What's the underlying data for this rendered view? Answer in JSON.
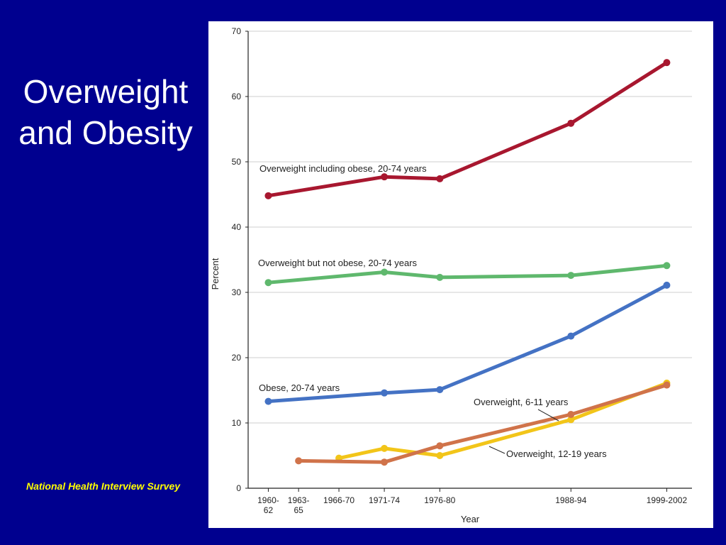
{
  "slide": {
    "title_line1": "Overweight",
    "title_line2": "and Obesity",
    "source": "National Health Interview Survey"
  },
  "chart_data": {
    "type": "line",
    "title": "",
    "xlabel": "Year",
    "ylabel": "Percent",
    "ylim": [
      0,
      70
    ],
    "yticks": [
      0,
      10,
      20,
      30,
      40,
      50,
      60,
      70
    ],
    "grid": true,
    "categories": [
      {
        "line1": "1960-",
        "line2": "62"
      },
      {
        "line1": "1963-",
        "line2": "65"
      },
      {
        "line1": "1966-70",
        "line2": ""
      },
      {
        "line1": "1971-74",
        "line2": ""
      },
      {
        "line1": "1976-80",
        "line2": ""
      },
      {
        "line1": "1988-94",
        "line2": ""
      },
      {
        "line1": "1999-2002",
        "line2": ""
      }
    ],
    "x_positions": [
      1961,
      1964,
      1968,
      1972.5,
      1978,
      1991,
      2000.5
    ],
    "series": [
      {
        "name": "Overweight including obese, 20-74 years",
        "color": "#a8172f",
        "points": [
          [
            1961,
            44.8
          ],
          [
            1972.5,
            47.7
          ],
          [
            1978,
            47.4
          ],
          [
            1991,
            55.9
          ],
          [
            2000.5,
            65.2
          ]
        ]
      },
      {
        "name": "Overweight but not obese, 20-74 years",
        "color": "#5fb86d",
        "points": [
          [
            1961,
            31.5
          ],
          [
            1972.5,
            33.1
          ],
          [
            1978,
            32.3
          ],
          [
            1991,
            32.6
          ],
          [
            2000.5,
            34.1
          ]
        ]
      },
      {
        "name": "Obese, 20-74 years",
        "color": "#4472c4",
        "points": [
          [
            1961,
            13.3
          ],
          [
            1972.5,
            14.6
          ],
          [
            1978,
            15.1
          ],
          [
            1991,
            23.3
          ],
          [
            2000.5,
            31.1
          ]
        ]
      },
      {
        "name": "Overweight, 12-19 years",
        "color": "#f2c519",
        "points": [
          [
            1968,
            4.6
          ],
          [
            1972.5,
            6.1
          ],
          [
            1978,
            5.0
          ],
          [
            1991,
            10.5
          ],
          [
            2000.5,
            16.1
          ]
        ]
      },
      {
        "name": "Overweight, 6-11 years",
        "color": "#d0734a",
        "points": [
          [
            1964,
            4.2
          ],
          [
            1972.5,
            4.0
          ],
          [
            1978,
            6.5
          ],
          [
            1991,
            11.3
          ],
          [
            2000.5,
            15.8
          ]
        ]
      }
    ]
  }
}
